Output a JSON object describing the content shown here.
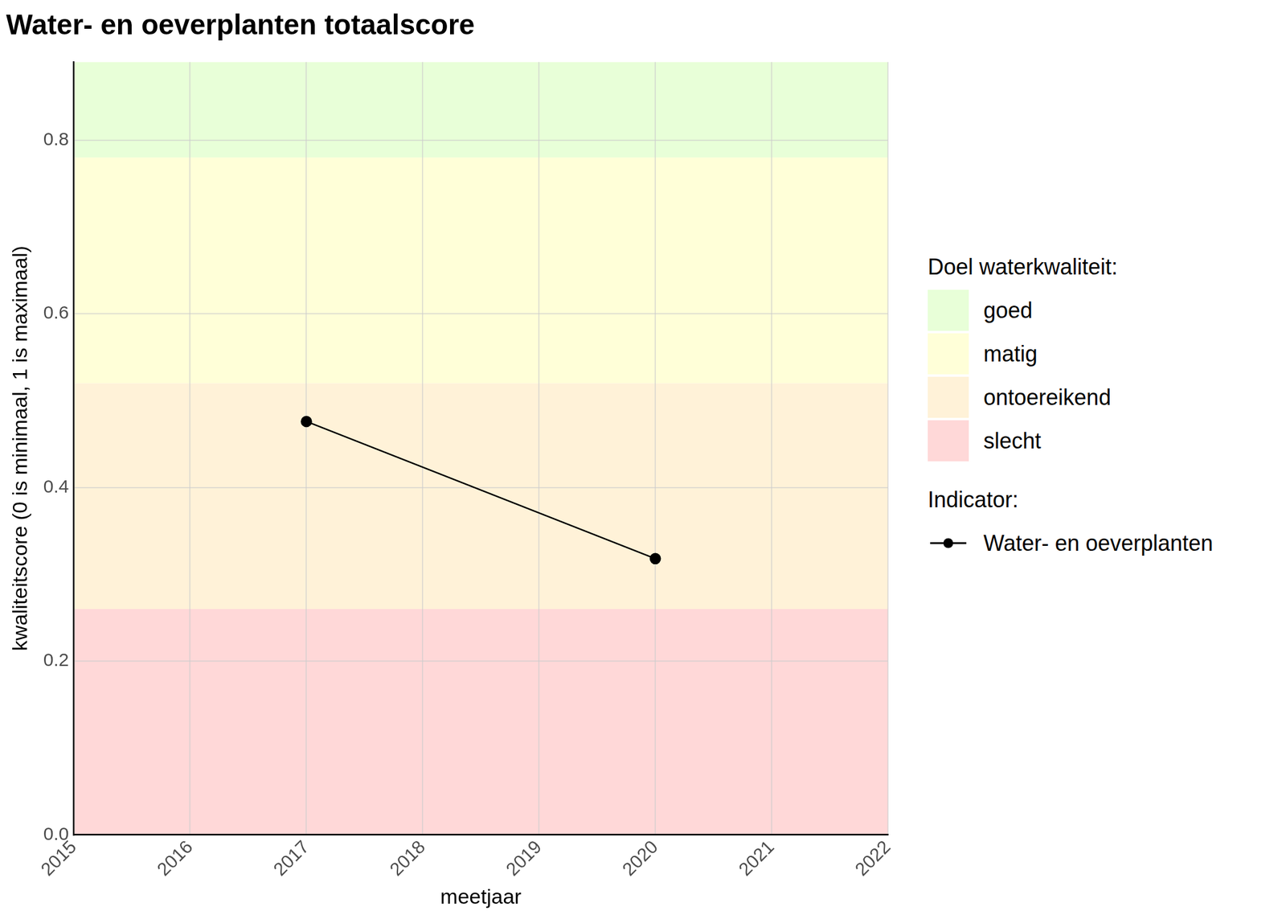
{
  "chart_data": {
    "type": "line",
    "title": "Water- en oeverplanten totaalscore",
    "x_label": "meetjaar",
    "y_label": "kwaliteitscore (0 is minimaal, 1 is maximaal)",
    "x": [
      2017,
      2020
    ],
    "series": [
      {
        "name": "Water- en oeverplanten",
        "color": "#000000",
        "marker": "circle",
        "line_style": "solid",
        "values": [
          0.476,
          0.318
        ]
      }
    ],
    "xlim": [
      2015,
      2022
    ],
    "xticks": [
      2015,
      2016,
      2017,
      2018,
      2019,
      2020,
      2021,
      2022
    ],
    "ylim": [
      0,
      0.89
    ],
    "yticks": [
      {
        "value": 0,
        "label": "0.0"
      },
      0.2,
      0.4,
      0.6,
      0.8
    ],
    "grid": true,
    "legend": "right",
    "band_legend_title": "Doel waterkwaliteit:",
    "series_legend_title": "Indicator:",
    "bands": [
      {
        "name": "goed",
        "from": 0.78,
        "to": 0.89,
        "color": "#e8ffd8"
      },
      {
        "name": "matig",
        "from": 0.52,
        "to": 0.78,
        "color": "#ffffd8"
      },
      {
        "name": "ontoereikend",
        "from": 0.26,
        "to": 0.52,
        "color": "#fff2d8"
      },
      {
        "name": "slecht",
        "from": 0,
        "to": 0.26,
        "color": "#ffd8d8"
      }
    ]
  }
}
